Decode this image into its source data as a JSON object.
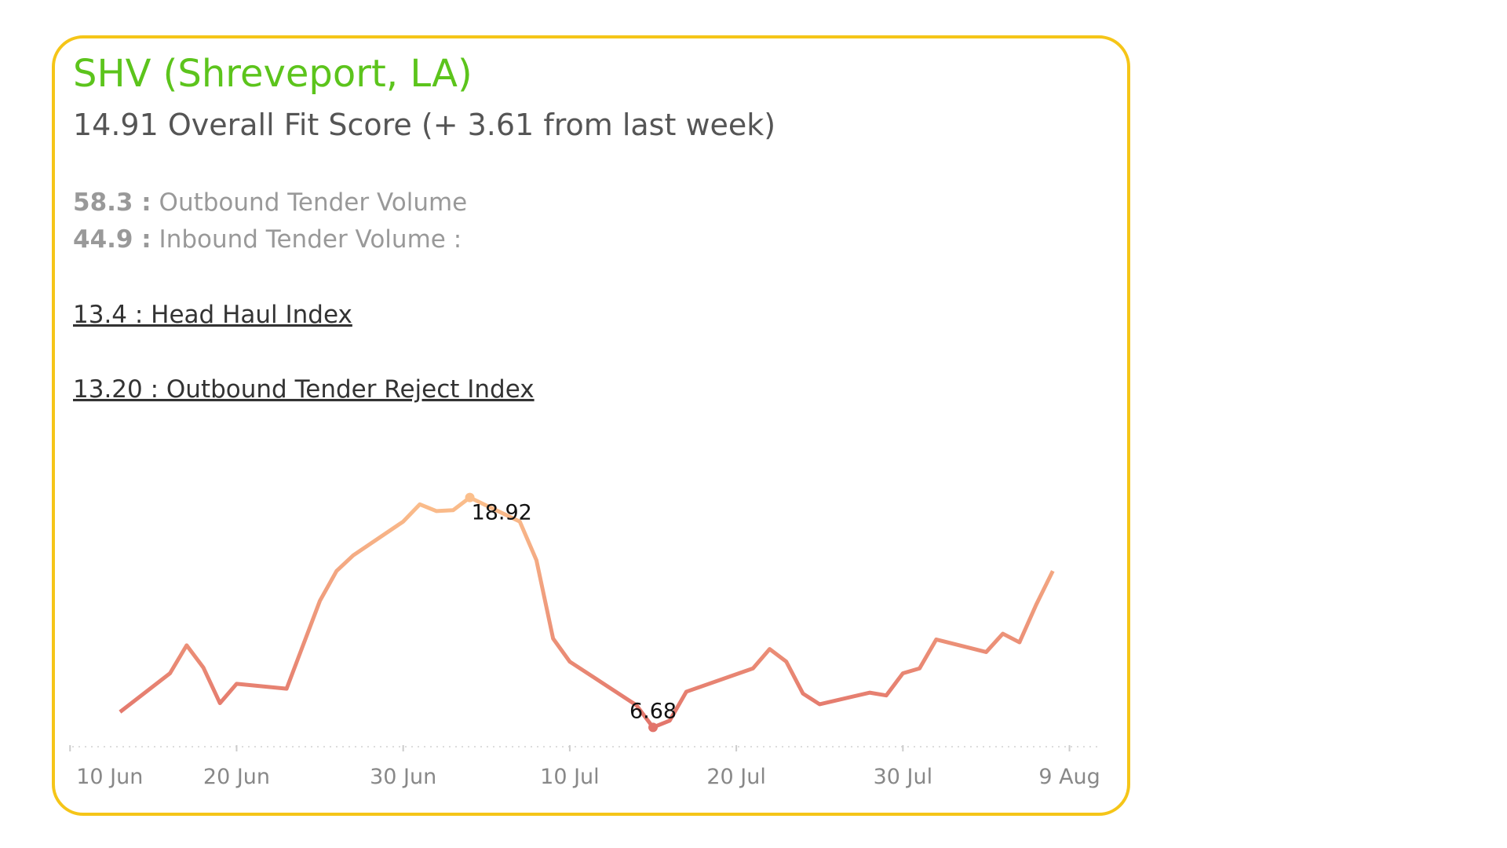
{
  "header": {
    "title": "SHV (Shreveport, LA)",
    "subtitle": "14.91 Overall Fit Score (+ 3.61 from last week)"
  },
  "metrics": [
    {
      "value": "58.3 :",
      "label": "Outbound Tender Volume"
    },
    {
      "value": "44.9 :",
      "label": "Inbound Tender Volume :"
    }
  ],
  "links": [
    "13.4 : Head Haul Index",
    "13.20 : Outbound Tender Reject Index"
  ],
  "chart_data": {
    "type": "line",
    "x": [
      3,
      6,
      7,
      8,
      9,
      10,
      13,
      15,
      16,
      17,
      20,
      21,
      22,
      23,
      24,
      27,
      28,
      29,
      30,
      34,
      35,
      36,
      37,
      41,
      42,
      43,
      44,
      45,
      48,
      49,
      50,
      51,
      52,
      55,
      56,
      57,
      58,
      59
    ],
    "series": [
      {
        "name": "Outbound Tender Reject Index",
        "color_low": "#e2746b",
        "color_high": "#fbbf8c",
        "values": [
          7.5,
          9.56,
          11.05,
          9.87,
          7.97,
          9.0,
          8.74,
          13.42,
          15.01,
          15.84,
          17.64,
          18.56,
          18.2,
          18.25,
          18.92,
          17.64,
          15.58,
          11.41,
          10.18,
          7.86,
          6.68,
          7.04,
          8.58,
          9.82,
          10.85,
          10.18,
          8.48,
          7.91,
          8.53,
          8.38,
          9.56,
          9.82,
          11.36,
          10.69,
          11.67,
          11.21,
          13.21,
          15.01
        ]
      }
    ],
    "xlim": [
      -0.2,
      62
    ],
    "xticks": [
      {
        "value": 0,
        "label": "10 Jun"
      },
      {
        "value": 10,
        "label": "20 Jun"
      },
      {
        "value": 20,
        "label": "30 Jun"
      },
      {
        "value": 30,
        "label": "10 Jul"
      },
      {
        "value": 40,
        "label": "20 Jul"
      },
      {
        "value": 50,
        "label": "30 Jul"
      },
      {
        "value": 60,
        "label": "9 Aug"
      }
    ],
    "ylim": [
      5.65,
      21.75
    ]
  }
}
